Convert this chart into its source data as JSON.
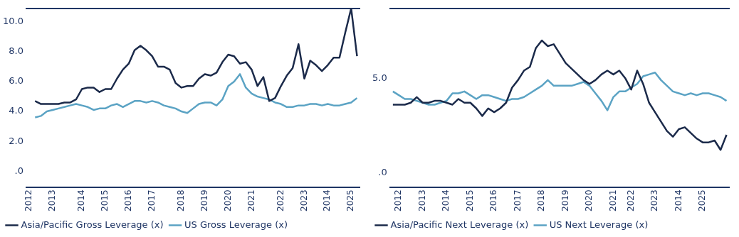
{
  "chart_data": [
    {
      "type": "line",
      "ylim": [
        -1.1,
        10.9
      ],
      "categories": [
        "2012",
        null,
        null,
        null,
        "2013",
        null,
        null,
        null,
        null,
        "2014",
        null,
        null,
        null,
        "2015",
        null,
        null,
        null,
        "2016",
        null,
        null,
        null,
        "2017",
        null,
        null,
        null,
        null,
        "2018",
        null,
        null,
        null,
        "2019",
        null,
        null,
        null,
        "2020",
        null,
        null,
        null,
        "2021",
        null,
        null,
        null,
        null,
        "2022",
        null,
        null,
        null,
        "2023",
        null,
        null,
        null,
        "2014",
        null,
        null,
        null,
        "2025",
        null
      ],
      "yticks": [
        {
          "value": 0,
          "label": ".0"
        },
        {
          "value": 2,
          "label": "2.0"
        },
        {
          "value": 4,
          "label": "4.0"
        },
        {
          "value": 6,
          "label": "6.0"
        },
        {
          "value": 8,
          "label": "8.0"
        },
        {
          "value": 10,
          "label": "10.0"
        }
      ],
      "grid": false,
      "legend": "bottom left",
      "marker": "none",
      "series": [
        {
          "name": "Asia/Pacific Gross Leverage (x)",
          "color": "#1b2a4a",
          "values": [
            null,
            4.7,
            4.5,
            4.5,
            4.5,
            4.5,
            4.6,
            4.6,
            4.8,
            5.5,
            5.6,
            5.6,
            5.3,
            5.5,
            5.5,
            6.2,
            6.8,
            7.2,
            8.1,
            8.4,
            8.1,
            7.7,
            7.0,
            7.0,
            6.8,
            5.9,
            5.6,
            5.7,
            5.7,
            6.2,
            6.5,
            6.4,
            6.6,
            7.3,
            7.8,
            7.7,
            7.2,
            7.3,
            6.8,
            5.7,
            6.3,
            4.7,
            4.9,
            5.7,
            6.4,
            6.9,
            8.5,
            6.2,
            7.4,
            7.1,
            6.7,
            7.1,
            7.6,
            7.6,
            9.3,
            10.9,
            7.7
          ]
        },
        {
          "name": "US Gross Leverage (x)",
          "color": "#5ba3c4",
          "values": [
            null,
            3.6,
            3.7,
            4.0,
            4.1,
            4.2,
            4.3,
            4.4,
            4.5,
            4.4,
            4.3,
            4.1,
            4.2,
            4.2,
            4.4,
            4.5,
            4.3,
            4.5,
            4.7,
            4.7,
            4.6,
            4.7,
            4.6,
            4.4,
            4.3,
            4.2,
            4.0,
            3.9,
            4.2,
            4.5,
            4.6,
            4.6,
            4.4,
            4.8,
            5.7,
            6.0,
            6.5,
            5.6,
            5.2,
            5.0,
            4.9,
            4.8,
            4.6,
            4.5,
            4.3,
            4.3,
            4.4,
            4.4,
            4.5,
            4.5,
            4.4,
            4.5,
            4.4,
            4.4,
            4.5,
            4.6,
            4.9
          ]
        }
      ]
    },
    {
      "type": "line",
      "ylim": [
        -0.8,
        8.7
      ],
      "categories": [
        null,
        "2012",
        null,
        null,
        null,
        "2013",
        null,
        null,
        null,
        "2014",
        null,
        null,
        null,
        "2015",
        null,
        null,
        null,
        "2016",
        null,
        null,
        null,
        "2017",
        null,
        null,
        null,
        "2018",
        null,
        null,
        null,
        "2019",
        null,
        null,
        null,
        "2020",
        null,
        null,
        null,
        "2021",
        null,
        null,
        "2022",
        null,
        null,
        null,
        "2023",
        null,
        null,
        null,
        "2014",
        null,
        null,
        null,
        "2025",
        null,
        null,
        null,
        null
      ],
      "yticks": [
        {
          "value": 0,
          "label": ".0"
        },
        {
          "value": 5,
          "label": "5.0"
        }
      ],
      "grid": false,
      "legend": "bottom left",
      "marker": "none",
      "series": [
        {
          "name": "Asia/Pacific Next Leverage (x)",
          "color": "#1b2a4a",
          "values": [
            3.6,
            3.6,
            3.6,
            3.7,
            4.0,
            3.7,
            3.7,
            3.8,
            3.8,
            3.7,
            3.6,
            3.9,
            3.7,
            3.7,
            3.4,
            3.0,
            3.4,
            3.2,
            3.4,
            3.7,
            4.5,
            4.9,
            5.4,
            5.6,
            6.6,
            7.0,
            6.7,
            6.8,
            6.3,
            5.8,
            5.5,
            5.2,
            4.9,
            4.7,
            4.9,
            5.2,
            5.4,
            5.2,
            5.4,
            5.0,
            4.4,
            5.4,
            4.7,
            3.7,
            3.2,
            2.7,
            2.2,
            1.9,
            2.3,
            2.4,
            2.1,
            1.8,
            1.6,
            1.6,
            1.7,
            1.2,
            2.0
          ]
        },
        {
          "name": "US Next Leverage (x)",
          "color": "#5ba3c4",
          "values": [
            4.3,
            4.1,
            3.9,
            3.9,
            3.8,
            3.7,
            3.6,
            3.6,
            3.7,
            3.8,
            4.2,
            4.2,
            4.3,
            4.1,
            3.9,
            4.1,
            4.1,
            4.0,
            3.9,
            3.8,
            3.9,
            3.9,
            4.0,
            4.2,
            4.4,
            4.6,
            4.9,
            4.6,
            4.6,
            4.6,
            4.6,
            4.7,
            4.8,
            4.6,
            4.2,
            3.8,
            3.3,
            4.0,
            4.3,
            4.3,
            4.5,
            4.7,
            5.1,
            5.2,
            5.3,
            4.9,
            4.6,
            4.3,
            4.2,
            4.1,
            4.2,
            4.1,
            4.2,
            4.2,
            4.1,
            4.0,
            3.8
          ]
        }
      ]
    }
  ]
}
